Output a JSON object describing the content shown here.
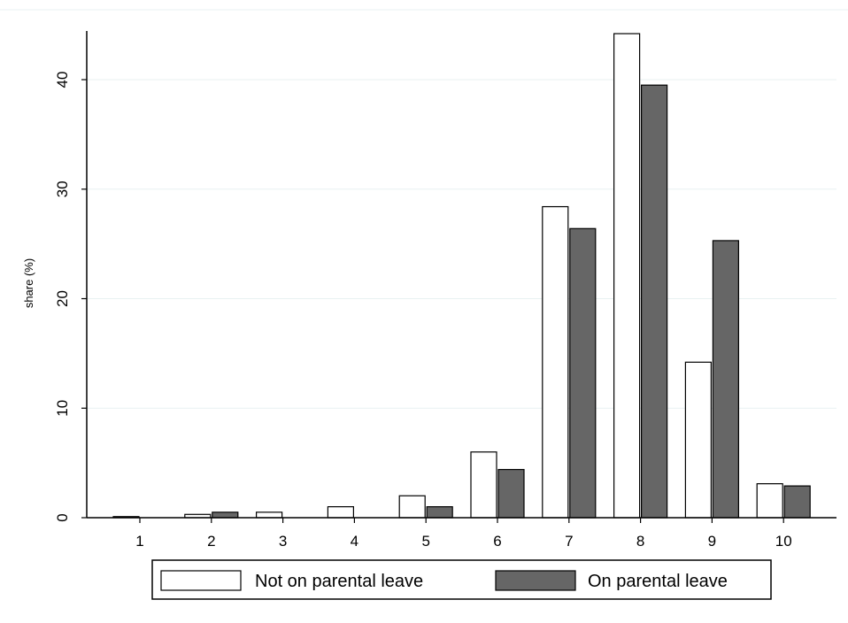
{
  "chart_data": {
    "type": "bar",
    "title": "",
    "xlabel": "",
    "ylabel": "share (%)",
    "categories": [
      "1",
      "2",
      "3",
      "4",
      "5",
      "6",
      "7",
      "8",
      "9",
      "10"
    ],
    "series": [
      {
        "name": "Not on parental leave",
        "values": [
          0.1,
          0.3,
          0.5,
          1.0,
          2.0,
          6.0,
          28.4,
          44.2,
          14.2,
          3.1
        ],
        "color": "#ffffff"
      },
      {
        "name": "On parental leave",
        "values": [
          0.0,
          0.5,
          0.0,
          0.0,
          1.0,
          4.4,
          26.4,
          39.5,
          25.3,
          2.9
        ],
        "color": "#666666"
      }
    ],
    "yticks": [
      0,
      10,
      20,
      30,
      40
    ],
    "ylim": [
      0,
      46
    ],
    "grid": true,
    "legend_position": "bottom"
  }
}
